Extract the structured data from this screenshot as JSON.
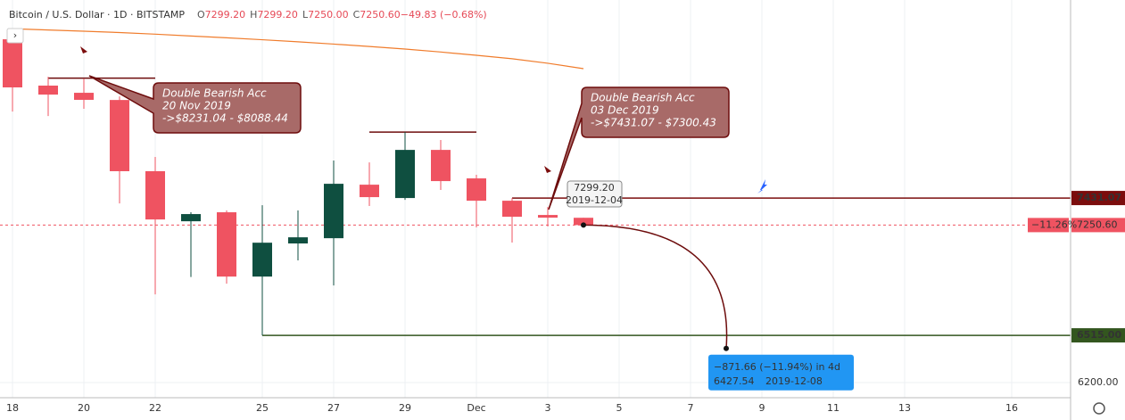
{
  "chart_data": {
    "type": "candlestick",
    "title": "Bitcoin / U.S. Dollar · 1D · BITSTAMP",
    "ohlc_header": [
      {
        "label": "O",
        "value": "7299.20"
      },
      {
        "label": "H",
        "value": "7299.20"
      },
      {
        "label": "L",
        "value": "7250.00"
      },
      {
        "label": "C",
        "value": "7250.60"
      },
      {
        "label": "",
        "value": "−49.83 (−0.68%)"
      }
    ],
    "x": [
      18,
      19,
      20,
      21,
      22,
      23,
      24,
      25,
      26,
      27,
      28,
      29,
      30,
      31,
      32,
      33,
      34
    ],
    "open": [
      8490,
      8181,
      8133,
      8085,
      7610,
      7276,
      7336,
      6907,
      7128,
      7163,
      7520,
      7431,
      7752,
      7562,
      7413,
      7318,
      7299.2
    ],
    "high": [
      8514,
      8240,
      8228,
      8109,
      7705,
      7336,
      7348,
      7383,
      7348,
      7681,
      7669,
      7871,
      7818,
      7586,
      7431,
      7372,
      7299.2
    ],
    "low": [
      8008,
      7978,
      8026,
      7395,
      6788,
      6904,
      6860,
      6515,
      7015,
      6848,
      7378,
      7419,
      7485,
      7235,
      7134,
      7241,
      7250
    ],
    "close": [
      8169,
      8121,
      8086,
      7610,
      7288,
      7324,
      6907,
      7133,
      7169,
      7526,
      7437,
      7752,
      7544,
      7413,
      7306,
      7300,
      7250.6
    ],
    "up_color": "#0f4f40",
    "down_color": "#ef5361",
    "ma": {
      "color": "#f07c2c",
      "values": [
        8560,
        8552,
        8544,
        8535,
        8524,
        8512,
        8500,
        8487,
        8473,
        8458,
        8442,
        8425,
        8405,
        8383,
        8360,
        8330,
        8294
      ]
    },
    "xlim": [
      17.65,
      47.65
    ],
    "ylim": [
      6099,
      8752
    ],
    "xticks": [
      18,
      20,
      22,
      25,
      27,
      29,
      {
        "value": 31,
        "label": "Dec"
      },
      {
        "value": 33,
        "label": "3"
      },
      {
        "value": 35,
        "label": "5"
      },
      {
        "value": 37,
        "label": "7"
      },
      {
        "value": 39,
        "label": "9"
      },
      {
        "value": 41,
        "label": "11"
      },
      {
        "value": 43,
        "label": "13"
      },
      {
        "value": 46,
        "label": "16"
      }
    ],
    "yticks": [
      {
        "value": 6200,
        "label": "6200.00"
      }
    ],
    "grid": true,
    "last_price": {
      "value": 7250.6,
      "label": "7250.60",
      "change": "−11.26%",
      "color": "#ef5361"
    },
    "levels": [
      {
        "value": 7431.07,
        "label": "7431.07",
        "from": 32,
        "color": "#7b0d0d"
      },
      {
        "value": 6515,
        "label": "6515.00",
        "from": 25,
        "color": "#33561f"
      }
    ],
    "segments": [
      {
        "value": 8231.04,
        "from": 19,
        "to": 22
      },
      {
        "value": 7871,
        "from": 28,
        "to": 31
      }
    ],
    "callouts": [
      {
        "lines": [
          "Double Bearish Acc",
          "20 Nov 2019",
          "->$8231.04 - $8088.44"
        ]
      },
      {
        "lines": [
          "Double Bearish Acc",
          "03 Dec 2019",
          "->$7431.07 - $7300.43"
        ]
      }
    ],
    "tooltip": {
      "price": "7299.20",
      "date": "2019-12-04"
    },
    "measure": {
      "label": "−871.66 (−11.94%) in 4d",
      "price": 6427.54,
      "date": "2019-12-08",
      "x": 38
    }
  }
}
